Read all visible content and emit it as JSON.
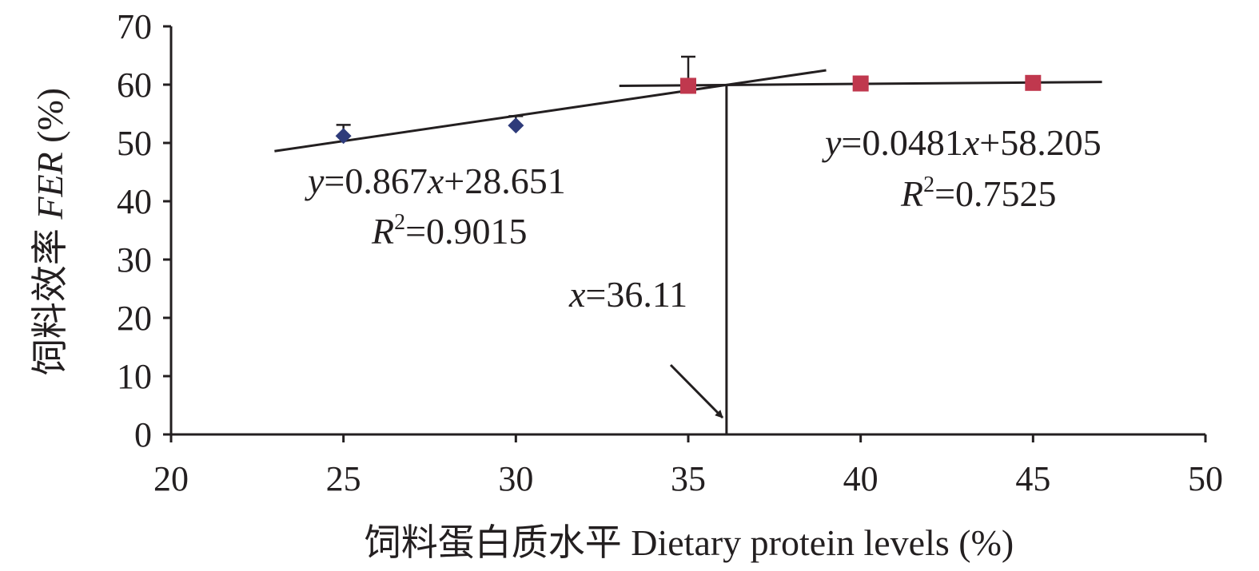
{
  "chart_data": {
    "type": "scatter",
    "xlabel": "饲料蛋白质水平 Dietary protein levels (%)",
    "ylabel": {
      "prefix": "饲料效率 ",
      "abbr": "FER",
      "suffix": " (%)"
    },
    "xlim": [
      20,
      50
    ],
    "ylim": [
      0,
      70
    ],
    "xticks": [
      20,
      25,
      30,
      35,
      40,
      45,
      50
    ],
    "yticks": [
      0,
      10,
      20,
      30,
      40,
      50,
      60,
      70
    ],
    "grid": false,
    "series": [
      {
        "marker": "diamond",
        "color": "#2e3b7a",
        "x": [
          25,
          30
        ],
        "y": [
          51.2,
          53.0
        ],
        "error": [
          1.9,
          1.6
        ]
      },
      {
        "marker": "square",
        "color": "#c0384e",
        "x": [
          35,
          40,
          45
        ],
        "y": [
          59.8,
          60.2,
          60.3
        ],
        "error": [
          5.0,
          0,
          0
        ]
      }
    ],
    "fits": [
      {
        "slope": 0.867,
        "intercept": 28.651,
        "x_range": [
          23,
          39
        ],
        "equation": {
          "y": "y",
          "eq": "=0.867",
          "x": "x",
          "rest": "+28.651"
        },
        "r2": {
          "R": "R",
          "sup": "2",
          "val": "=0.9015"
        }
      },
      {
        "slope": 0.0481,
        "intercept": 58.205,
        "x_range": [
          33,
          47
        ],
        "equation": {
          "y": "y",
          "eq": "=0.0481",
          "x": "x",
          "rest": "+58.205"
        },
        "r2": {
          "R": "R",
          "sup": "2",
          "val": "=0.7525"
        }
      }
    ],
    "breakpoint": {
      "x": 36.11,
      "y": 60,
      "label": {
        "x": "x",
        "val": "=36.11"
      }
    }
  }
}
